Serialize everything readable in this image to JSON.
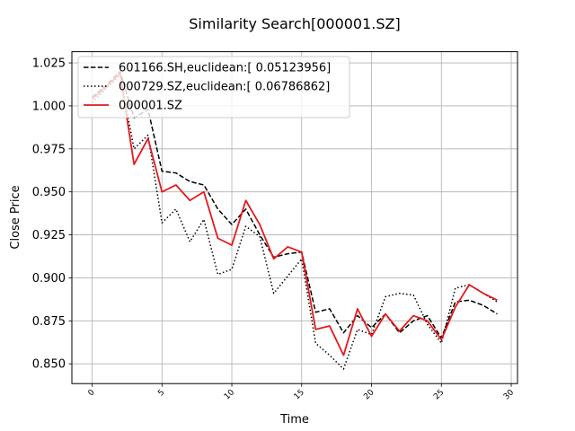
{
  "chart_data": {
    "type": "line",
    "title": "Similarity Search[000001.SZ]",
    "xlabel": "Time",
    "ylabel": "Close Price",
    "xlim": [
      -1.45,
      30.45
    ],
    "ylim": [
      0.8385,
      1.0315
    ],
    "x_ticks": [
      0,
      5,
      10,
      15,
      20,
      25,
      30
    ],
    "y_ticks": [
      0.85,
      0.875,
      0.9,
      0.925,
      0.95,
      0.975,
      1.0,
      1.025
    ],
    "y_tick_labels": [
      "0.850",
      "0.875",
      "0.900",
      "0.925",
      "0.950",
      "0.975",
      "1.000",
      "1.025"
    ],
    "grid": true,
    "legend_position": "upper-left",
    "x": [
      0,
      1,
      2,
      3,
      4,
      5,
      6,
      7,
      8,
      9,
      10,
      11,
      12,
      13,
      14,
      15,
      16,
      17,
      18,
      19,
      20,
      21,
      22,
      23,
      24,
      25,
      26,
      27,
      28,
      29
    ],
    "series": [
      {
        "name": "601166.SH,euclidean:[ 0.05123956]",
        "style": "dashed",
        "color": "#000000",
        "values": [
          1.005,
          1.012,
          1.02,
          0.993,
          0.998,
          0.962,
          0.961,
          0.956,
          0.954,
          0.94,
          0.931,
          0.94,
          0.925,
          0.912,
          0.914,
          0.915,
          0.88,
          0.882,
          0.868,
          0.878,
          0.871,
          0.879,
          0.868,
          0.875,
          0.878,
          0.865,
          0.886,
          0.887,
          0.884,
          0.879
        ]
      },
      {
        "name": "000729.SZ,euclidean:[ 0.06786862]",
        "style": "dotted",
        "color": "#000000",
        "values": [
          1.002,
          1.01,
          1.018,
          0.975,
          0.983,
          0.932,
          0.94,
          0.921,
          0.934,
          0.902,
          0.905,
          0.93,
          0.924,
          0.891,
          0.901,
          0.911,
          0.862,
          0.855,
          0.847,
          0.87,
          0.867,
          0.889,
          0.891,
          0.89,
          0.873,
          0.862,
          0.894,
          0.896,
          0.891,
          0.886
        ]
      },
      {
        "name": "000001.SZ",
        "style": "solid",
        "color": "#e31a1c",
        "values": [
          1.004,
          1.011,
          1.019,
          0.966,
          0.981,
          0.95,
          0.954,
          0.945,
          0.95,
          0.923,
          0.919,
          0.945,
          0.931,
          0.911,
          0.918,
          0.915,
          0.87,
          0.872,
          0.855,
          0.882,
          0.866,
          0.879,
          0.869,
          0.878,
          0.875,
          0.864,
          0.883,
          0.896,
          0.891,
          0.887
        ]
      }
    ]
  }
}
